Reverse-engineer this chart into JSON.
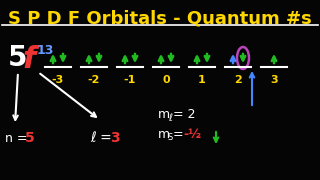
{
  "title": "S P D F Orbitals - Quantum #s",
  "title_color": "#FFD700",
  "bg_color": "#050505",
  "title_fontsize": 13,
  "orbital_5_color": "#FFFFFF",
  "orbital_f_color": "#EE3333",
  "orbital_superscript_color": "#6699FF",
  "ml_values": [
    -3,
    -2,
    -1,
    0,
    1,
    2,
    3
  ],
  "ml_color": "#FFD700",
  "arrow_up_color": "#22BB22",
  "arrow_down_color": "#22BB22",
  "highlighted_box_color": "#BB44BB",
  "highlighted_up_color": "#4488FF",
  "n_value_color": "#EE3333",
  "l_value_color": "#EE3333",
  "ms_value_color": "#EE3333",
  "annotation_color": "#FFFFFF",
  "line_color": "#FFFFFF"
}
